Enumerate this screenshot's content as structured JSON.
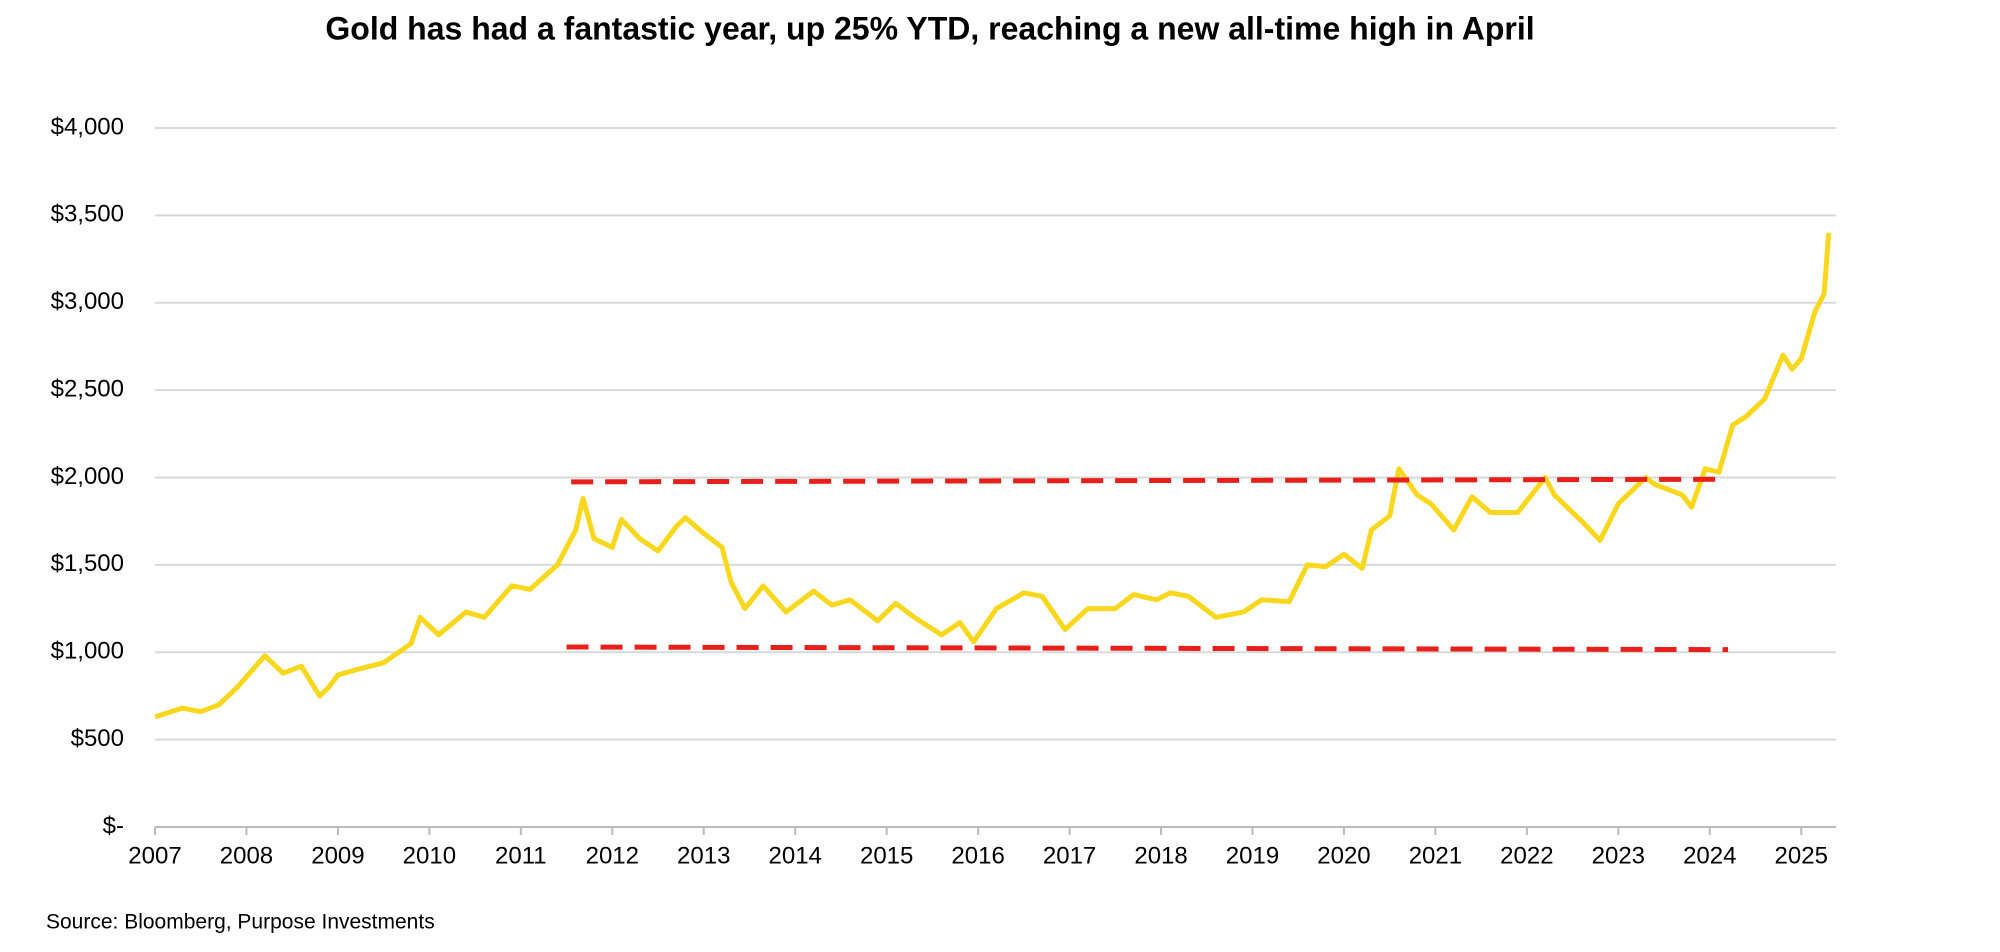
{
  "chart_data": {
    "type": "line",
    "title": "Gold has had a fantastic year, up 25% YTD, reaching a new all-time high in April",
    "source": "Source: Bloomberg, Purpose Investments",
    "xlim": [
      2007,
      2025.38
    ],
    "xticks": [
      2007,
      2008,
      2009,
      2010,
      2011,
      2012,
      2013,
      2014,
      2015,
      2016,
      2017,
      2018,
      2019,
      2020,
      2021,
      2022,
      2023,
      2024,
      2025
    ],
    "ylim": [
      0,
      4000
    ],
    "yticks": [
      {
        "value": 0,
        "label": "$-"
      },
      {
        "value": 500,
        "label": "$500"
      },
      {
        "value": 1000,
        "label": "$1,000"
      },
      {
        "value": 1500,
        "label": "$1,500"
      },
      {
        "value": 2000,
        "label": "$2,000"
      },
      {
        "value": 2500,
        "label": "$2,500"
      },
      {
        "value": 3000,
        "label": "$3,000"
      },
      {
        "value": 3500,
        "label": "$3,500"
      },
      {
        "value": 4000,
        "label": "$4,000"
      }
    ],
    "grid": true,
    "series": [
      {
        "color": "#f9d71c",
        "width": 5,
        "dashed": false,
        "x": [
          2007.0,
          2007.3,
          2007.5,
          2007.7,
          2007.9,
          2008.2,
          2008.4,
          2008.6,
          2008.8,
          2008.9,
          2009.0,
          2009.2,
          2009.5,
          2009.8,
          2009.9,
          2010.1,
          2010.4,
          2010.6,
          2010.9,
          2011.1,
          2011.4,
          2011.6,
          2011.68,
          2011.8,
          2012.0,
          2012.1,
          2012.3,
          2012.5,
          2012.7,
          2012.8,
          2013.0,
          2013.2,
          2013.3,
          2013.45,
          2013.65,
          2013.9,
          2014.2,
          2014.4,
          2014.6,
          2014.9,
          2015.1,
          2015.3,
          2015.6,
          2015.8,
          2015.95,
          2016.2,
          2016.5,
          2016.7,
          2016.95,
          2017.2,
          2017.5,
          2017.7,
          2017.95,
          2018.1,
          2018.3,
          2018.6,
          2018.9,
          2019.1,
          2019.4,
          2019.6,
          2019.8,
          2020.0,
          2020.2,
          2020.3,
          2020.5,
          2020.6,
          2020.8,
          2020.95,
          2021.2,
          2021.4,
          2021.6,
          2021.9,
          2022.2,
          2022.3,
          2022.6,
          2022.8,
          2023.0,
          2023.3,
          2023.4,
          2023.7,
          2023.8,
          2023.95,
          2024.1,
          2024.25,
          2024.4,
          2024.6,
          2024.8,
          2024.9,
          2025.0,
          2025.15,
          2025.25,
          2025.3
        ],
        "values": [
          630,
          680,
          660,
          700,
          800,
          980,
          880,
          920,
          750,
          800,
          870,
          900,
          940,
          1050,
          1200,
          1100,
          1230,
          1200,
          1380,
          1360,
          1500,
          1700,
          1880,
          1650,
          1600,
          1760,
          1650,
          1580,
          1720,
          1770,
          1680,
          1600,
          1400,
          1250,
          1380,
          1230,
          1350,
          1270,
          1300,
          1180,
          1280,
          1200,
          1100,
          1170,
          1060,
          1250,
          1340,
          1320,
          1130,
          1250,
          1250,
          1330,
          1300,
          1340,
          1320,
          1200,
          1230,
          1300,
          1290,
          1500,
          1490,
          1560,
          1480,
          1700,
          1780,
          2050,
          1900,
          1850,
          1700,
          1890,
          1800,
          1800,
          2000,
          1900,
          1750,
          1640,
          1850,
          2000,
          1960,
          1900,
          1830,
          2050,
          2030,
          2300,
          2350,
          2450,
          2700,
          2620,
          2680,
          2950,
          3050,
          3400
        ]
      },
      {
        "color": "#e8201c",
        "width": 5,
        "dashed": true,
        "x": [
          2011.55,
          2024.19
        ],
        "values": [
          1975,
          1990
        ]
      },
      {
        "color": "#e8201c",
        "width": 5,
        "dashed": true,
        "x": [
          2011.5,
          2024.2
        ],
        "values": [
          1030,
          1015
        ]
      }
    ]
  }
}
